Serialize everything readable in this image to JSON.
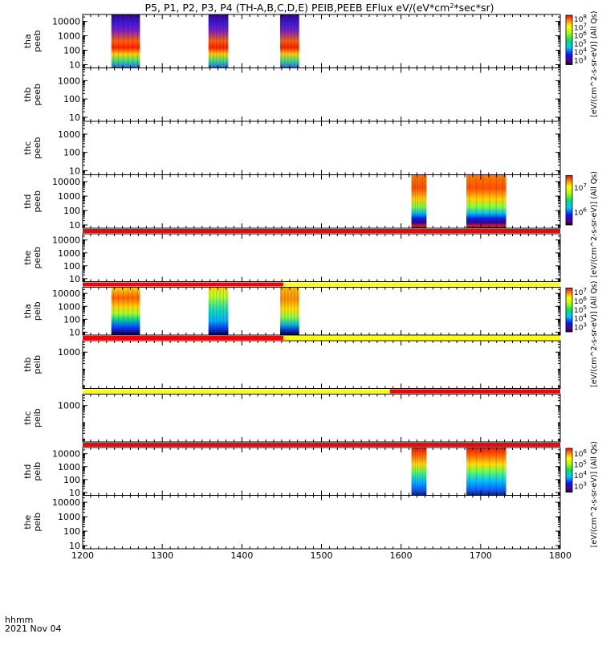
{
  "chart_data": {
    "type": "heatmap",
    "title": "P5, P1, P2, P3, P4 (TH-A,B,C,D,E) PEIB,PEEB EFlux eV/(eV*cm^2*sec*sr)",
    "title_prefix": "P5, P1, P2, P3, P4 (TH-A,B,C,D,E) PEIB,PEEB EFlux eV/(eV*cm",
    "title_sup": "2",
    "title_suffix": "*sec*sr)",
    "x_axis": {
      "range": [
        1200,
        1800
      ],
      "ticks": [
        1200,
        1300,
        1400,
        1500,
        1600,
        1700,
        1800
      ],
      "tick_labels": [
        "1200",
        "1300",
        "1400",
        "1500",
        "1600",
        "1700",
        "1800"
      ],
      "label_line1": "hhmm",
      "label_line2": "2021 Nov 04"
    },
    "panels": [
      {
        "id": "tha-peeb",
        "ylabel": [
          "tha",
          "peeb"
        ],
        "yscale": "log",
        "ylim": [
          6,
          30000
        ],
        "yticks": [
          10,
          100,
          1000,
          10000
        ],
        "ytick_labels": [
          "10",
          "100",
          "1000",
          "10000"
        ],
        "coverage_bar": [],
        "data_blocks": [
          {
            "x": [
              1236,
              1272
            ],
            "profile": "purple-top"
          },
          {
            "x": [
              1358,
              1383
            ],
            "profile": "purple-top"
          },
          {
            "x": [
              1448,
              1472
            ],
            "profile": "purple-top"
          }
        ],
        "colorbar": {
          "exponents": [
            "8",
            "7",
            "6",
            "5",
            "4",
            "3"
          ],
          "label": "[eV/(cm^2-s-sr-eV)] (All Qs)",
          "label_short": "(All"
        }
      },
      {
        "id": "thb-peeb",
        "ylabel": [
          "thb",
          "peeb"
        ],
        "yscale": "log",
        "ylim": [
          6,
          5000
        ],
        "yticks": [
          10,
          100,
          1000
        ],
        "ytick_labels": [
          "10",
          "100",
          "1000"
        ],
        "coverage_bar": [],
        "data_blocks": [],
        "colorbar": null
      },
      {
        "id": "thc-peeb",
        "ylabel": [
          "thc",
          "peeb"
        ],
        "yscale": "log",
        "ylim": [
          6,
          5000
        ],
        "yticks": [
          10,
          100,
          1000
        ],
        "ytick_labels": [
          "10",
          "100",
          "1000"
        ],
        "coverage_bar": [],
        "data_blocks": [],
        "colorbar": null
      },
      {
        "id": "thd-peeb",
        "ylabel": [
          "thd",
          "peeb"
        ],
        "yscale": "log",
        "ylim": [
          6,
          30000
        ],
        "yticks": [
          10,
          100,
          1000,
          10000
        ],
        "ytick_labels": [
          "10",
          "100",
          "1000",
          "10000"
        ],
        "coverage_bar": [],
        "data_blocks": [
          {
            "x": [
              1613,
              1632
            ],
            "profile": "warm-top"
          },
          {
            "x": [
              1682,
              1732
            ],
            "profile": "warm-top"
          }
        ],
        "colorbar": {
          "exponents": [
            "7",
            "6"
          ],
          "label": "[eV/(cm^2-s-sr-eV)] (All Qs)",
          "label_short": ""
        }
      },
      {
        "id": "the-peeb",
        "ylabel": [
          "the",
          "peeb"
        ],
        "yscale": "log",
        "ylim": [
          6,
          30000
        ],
        "yticks": [
          10,
          100,
          1000,
          10000
        ],
        "ytick_labels": [
          "10",
          "100",
          "1000",
          "10000"
        ],
        "coverage_bar": [
          {
            "x": [
              1200,
              1800
            ],
            "color": "#ff0000"
          }
        ],
        "data_blocks": [],
        "colorbar": null
      },
      {
        "id": "tha-peib",
        "ylabel": [
          "tha",
          "peib"
        ],
        "yscale": "log",
        "ylim": [
          6,
          30000
        ],
        "yticks": [
          10,
          100,
          1000,
          10000
        ],
        "ytick_labels": [
          "10",
          "100",
          "1000",
          "10000"
        ],
        "coverage_bar": [
          {
            "x": [
              1200,
              1452
            ],
            "color": "#ff0000"
          },
          {
            "x": [
              1452,
              1800
            ],
            "color": "#ffff00"
          }
        ],
        "data_blocks": [
          {
            "x": [
              1236,
              1272
            ],
            "profile": "ion-hot"
          },
          {
            "x": [
              1358,
              1383
            ],
            "profile": "ion-cool"
          },
          {
            "x": [
              1448,
              1472
            ],
            "profile": "ion-warm"
          }
        ],
        "colorbar": {
          "exponents": [
            "7",
            "6",
            "5",
            "4",
            "3"
          ],
          "label": "[eV/(cm^2-s-sr-eV)] (All Qs)",
          "label_short": ""
        }
      },
      {
        "id": "thb-peib",
        "ylabel": [
          "thb",
          "peib"
        ],
        "yscale": "log",
        "ylim": [
          6,
          5000
        ],
        "yticks": [
          1000
        ],
        "ytick_labels": [
          "1000"
        ],
        "coverage_bar": [
          {
            "x": [
              1200,
              1452
            ],
            "color": "#ff0000"
          },
          {
            "x": [
              1452,
              1800
            ],
            "color": "#ffff00"
          }
        ],
        "data_blocks": [],
        "colorbar": null
      },
      {
        "id": "thc-peib",
        "ylabel": [
          "thc",
          "peib"
        ],
        "yscale": "log",
        "ylim": [
          6,
          5000
        ],
        "yticks": [
          1000
        ],
        "ytick_labels": [
          "1000"
        ],
        "coverage_bar": [
          {
            "x": [
              1200,
              1586
            ],
            "color": "#ffff00"
          },
          {
            "x": [
              1586,
              1800
            ],
            "color": "#ff0000"
          }
        ],
        "data_blocks": [],
        "colorbar": null
      },
      {
        "id": "thd-peib",
        "ylabel": [
          "thd",
          "peib"
        ],
        "yscale": "log",
        "ylim": [
          6,
          30000
        ],
        "yticks": [
          10,
          100,
          1000,
          10000
        ],
        "ytick_labels": [
          "10",
          "100",
          "1000",
          "10000"
        ],
        "coverage_bar": [
          {
            "x": [
              1200,
              1800
            ],
            "color": "#ff0000"
          }
        ],
        "data_blocks": [
          {
            "x": [
              1613,
              1632
            ],
            "profile": "ion-thd"
          },
          {
            "x": [
              1682,
              1732
            ],
            "profile": "ion-thd"
          }
        ],
        "colorbar": {
          "exponents": [
            "6",
            "5",
            "4",
            "3"
          ],
          "label": "[eV/(cm^2-s-sr-eV)] (All Qs)",
          "label_short": ""
        }
      },
      {
        "id": "the-peib",
        "ylabel": [
          "the",
          "peib"
        ],
        "yscale": "log",
        "ylim": [
          6,
          30000
        ],
        "yticks": [
          10,
          100,
          1000,
          10000
        ],
        "ytick_labels": [
          "10",
          "100",
          "1000",
          "10000"
        ],
        "coverage_bar": [],
        "data_blocks": [],
        "colorbar": null
      }
    ]
  }
}
